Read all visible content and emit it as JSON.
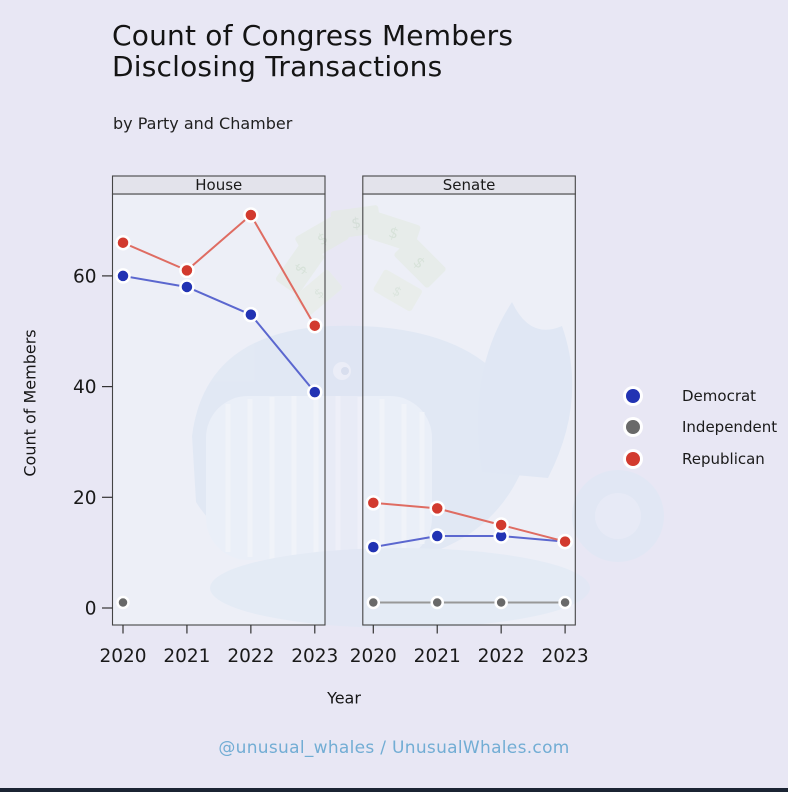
{
  "header": {
    "title_line1": "Count of Congress Members",
    "title_line2": "Disclosing Transactions",
    "subtitle": "by Party and Chamber"
  },
  "chart_data": {
    "type": "line",
    "title": "Count of Congress Members Disclosing Transactions",
    "subtitle": "by Party and Chamber",
    "xlabel": "Year",
    "ylabel": "Count of Members",
    "categories": [
      "2020",
      "2021",
      "2022",
      "2023"
    ],
    "yticks": [
      0,
      20,
      40,
      60
    ],
    "ylim": [
      0,
      75
    ],
    "grid": false,
    "legend_position": "right",
    "facets": [
      {
        "label": "House",
        "series": [
          {
            "name": "Independent",
            "values": [
              1,
              null,
              null,
              null
            ]
          },
          {
            "name": "Democrat",
            "values": [
              60,
              58,
              53,
              39
            ]
          },
          {
            "name": "Republican",
            "values": [
              66,
              61,
              71,
              51
            ]
          }
        ]
      },
      {
        "label": "Senate",
        "series": [
          {
            "name": "Independent",
            "values": [
              1,
              1,
              1,
              1
            ]
          },
          {
            "name": "Democrat",
            "values": [
              11,
              13,
              13,
              12
            ]
          },
          {
            "name": "Republican",
            "values": [
              19,
              18,
              15,
              12
            ]
          }
        ]
      }
    ]
  },
  "legend": {
    "items": [
      {
        "label": "Democrat",
        "color": "#2233b3",
        "line_color": "#5b67cf"
      },
      {
        "label": "Independent",
        "color": "#696969",
        "line_color": "#989898"
      },
      {
        "label": "Republican",
        "color": "#d23a2e",
        "line_color": "#df6c62"
      }
    ]
  },
  "footer": {
    "credit": "@unusual_whales / UnusualWhales.com"
  },
  "watermark": {
    "money_symbol": "$"
  },
  "colors": {
    "background": "#e8e7f4",
    "panel_background": "#edeff7",
    "strip_background": "#e3e3eb",
    "panel_border": "#454545",
    "tick": "#333333",
    "text": "#1a1a1a",
    "credit_text": "#72add4",
    "bottom_strip": "#1b2433"
  }
}
